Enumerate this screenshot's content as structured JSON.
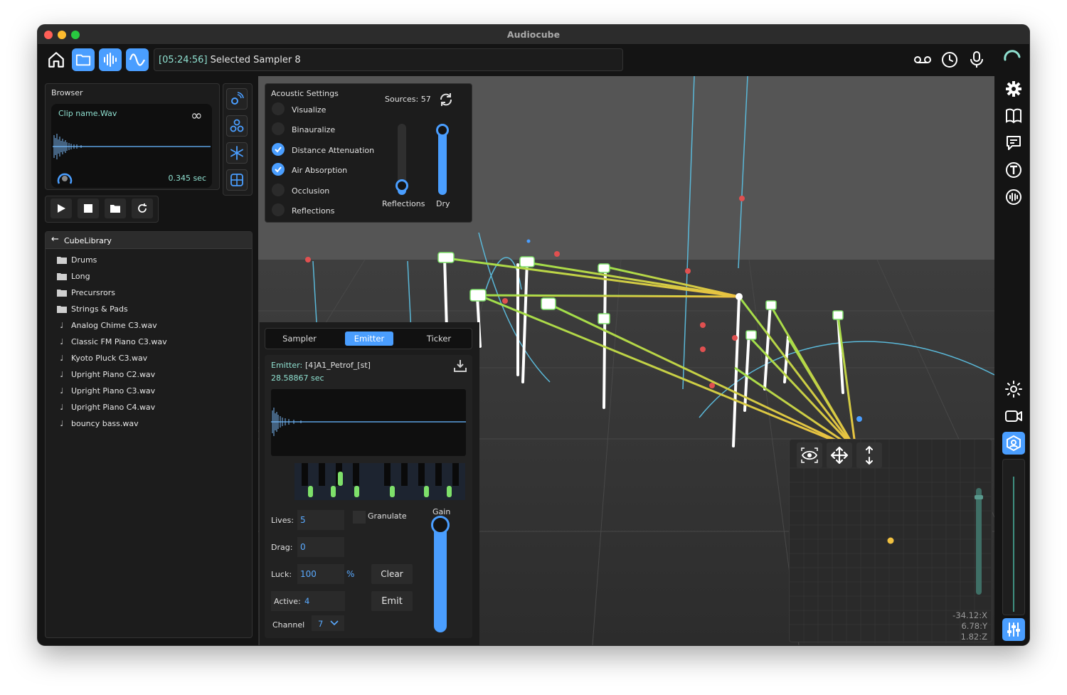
{
  "window": {
    "title": "Audiocube"
  },
  "toolbar": {
    "log_time": "[05:24:56]",
    "log_message": " Selected Sampler 8"
  },
  "browser": {
    "title": "Browser",
    "clip_name": "Clip name.Wav",
    "duration": "0.345 sec"
  },
  "library": {
    "title": "CubeLibrary",
    "folders": [
      "Drums",
      "Long",
      "Precursrors",
      "Strings & Pads"
    ],
    "files": [
      "Analog Chime C3.wav",
      "Classic FM Piano C3.wav",
      "Kyoto Pluck C3.wav",
      "Upright Piano C2.wav",
      "Upright Piano C3.wav",
      "Upright Piano C4.wav",
      "bouncy bass.wav"
    ]
  },
  "acoustic": {
    "title": "Acoustic Settings",
    "sources": "Sources: 57",
    "options": [
      {
        "label": "Visualize",
        "checked": false
      },
      {
        "label": "Binauralize",
        "checked": false
      },
      {
        "label": "Distance Attenuation",
        "checked": true
      },
      {
        "label": "Air Absorption",
        "checked": true
      },
      {
        "label": "Occlusion",
        "checked": false
      },
      {
        "label": "Reflections",
        "checked": false
      }
    ],
    "reflections_label": "Reflections",
    "dry_label": "Dry",
    "reflections_level": 0.05,
    "dry_level": 1.0
  },
  "tabs": [
    {
      "label": "Sampler",
      "active": false
    },
    {
      "label": "Emitter",
      "active": true
    },
    {
      "label": "Ticker",
      "active": false
    }
  ],
  "emitter": {
    "label": "Emitter:",
    "name": "[4]A1_Petrof_[st]",
    "duration": "28.58867 sec",
    "lives_label": "Lives:",
    "lives": "5",
    "drag_label": "Drag:",
    "drag": "0",
    "luck_label": "Luck:",
    "luck": "100",
    "luck_unit": "%",
    "active_label": "Active:",
    "active": "4",
    "channel_label": "Channel",
    "channel": "7",
    "granulate_label": "Granulate",
    "gain_label": "Gain",
    "gain_level": 1.0,
    "clear_label": "Clear",
    "emit_label": "Emit"
  },
  "position": {
    "x": "-34.12:X",
    "y": "6.78:Y",
    "z": "1.82:Z"
  },
  "colors": {
    "accent": "#4a9eff",
    "teal": "#8fe0d0",
    "green": "#7ee06a"
  }
}
